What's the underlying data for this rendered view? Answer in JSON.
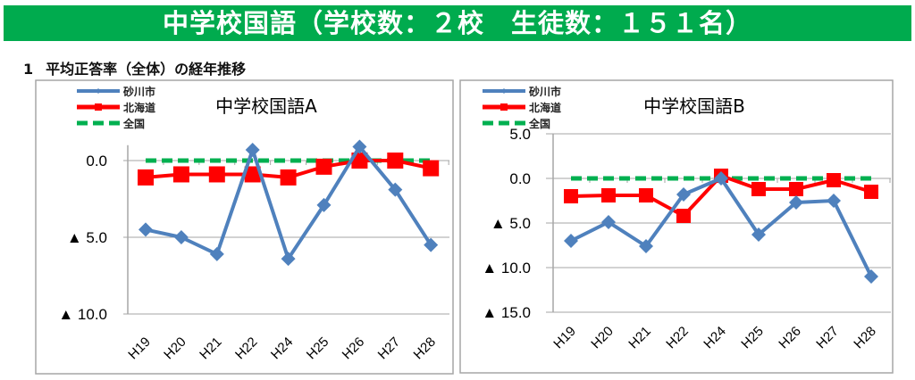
{
  "banner": {
    "title": "中学校国語（学校数：２校　生徒数：１５１名）"
  },
  "section": {
    "number": "1",
    "title": "平均正答率（全体）の経年推移"
  },
  "colors": {
    "banner": "#00ab4e",
    "sunagawa": "#4f81bd",
    "hokkaido": "#ff0000",
    "national": "#00b050"
  },
  "chart_data": [
    {
      "type": "line",
      "title": "中学校国語A",
      "categories": [
        "H19",
        "H20",
        "H21",
        "H22",
        "H24",
        "H25",
        "H26",
        "H27",
        "H28"
      ],
      "ylim": [
        -10,
        1
      ],
      "yticks": [
        0,
        -5,
        -10
      ],
      "ytick_labels": [
        "0.0",
        "▲ 5.0",
        "▲ 10.0"
      ],
      "legend_position": "top-left",
      "series": [
        {
          "name": "砂川市",
          "values": [
            -4.5,
            -5.0,
            -6.1,
            0.7,
            -6.4,
            -2.9,
            0.9,
            -1.9,
            -5.5
          ]
        },
        {
          "name": "北海道",
          "values": [
            -1.1,
            -0.9,
            -0.9,
            -0.9,
            -1.1,
            -0.4,
            0.0,
            0.0,
            -0.5
          ]
        },
        {
          "name": "全国",
          "values": [
            0,
            0,
            0,
            0,
            0,
            0,
            0,
            0,
            0
          ]
        }
      ]
    },
    {
      "type": "line",
      "title": "中学校国語B",
      "categories": [
        "H19",
        "H20",
        "H21",
        "H22",
        "H24",
        "H25",
        "H26",
        "H27",
        "H28"
      ],
      "ylim": [
        -15,
        5
      ],
      "yticks": [
        5,
        0,
        -5,
        -10,
        -15
      ],
      "ytick_labels": [
        "5.0",
        "0.0",
        "▲ 5.0",
        "▲ 10.0",
        "▲ 15.0"
      ],
      "legend_position": "top-left",
      "series": [
        {
          "name": "砂川市",
          "values": [
            -7.0,
            -4.9,
            -7.6,
            -1.8,
            0.0,
            -6.3,
            -2.7,
            -2.5,
            -11.0
          ]
        },
        {
          "name": "北海道",
          "values": [
            -2.0,
            -1.9,
            -1.9,
            -4.2,
            0.3,
            -1.2,
            -1.2,
            -0.2,
            -1.5
          ]
        },
        {
          "name": "全国",
          "values": [
            0,
            0,
            0,
            0,
            0,
            0,
            0,
            0,
            0
          ]
        }
      ]
    }
  ]
}
